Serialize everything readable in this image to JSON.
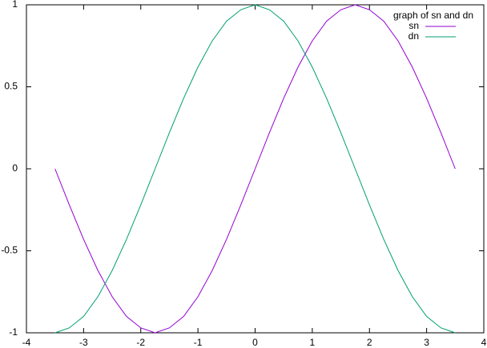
{
  "chart_data": {
    "type": "line",
    "legend_title": "graph of sn and dn",
    "legend_position": "top-right",
    "x": [
      -3.5,
      -3.25,
      -3,
      -2.75,
      -2.5,
      -2.25,
      -2,
      -1.75,
      -1.5,
      -1.25,
      -1,
      -0.75,
      -0.5,
      -0.25,
      0,
      0.25,
      0.5,
      0.75,
      1,
      1.25,
      1.5,
      1.75,
      2,
      2.25,
      2.5,
      2.75,
      3,
      3.25,
      3.5
    ],
    "series": [
      {
        "name": "sn",
        "color": "#9400d3",
        "values": [
          0,
          -0.22,
          -0.43,
          -0.62,
          -0.78,
          -0.9,
          -0.97,
          -1,
          -0.97,
          -0.9,
          -0.78,
          -0.62,
          -0.43,
          -0.22,
          0,
          0.22,
          0.43,
          0.62,
          0.78,
          0.9,
          0.97,
          1,
          0.97,
          0.9,
          0.78,
          0.62,
          0.43,
          0.22,
          0
        ]
      },
      {
        "name": "dn",
        "color": "#009e73",
        "values": [
          -1,
          -0.97,
          -0.9,
          -0.78,
          -0.62,
          -0.43,
          -0.22,
          0,
          0.22,
          0.43,
          0.62,
          0.78,
          0.9,
          0.97,
          1,
          0.97,
          0.9,
          0.78,
          0.62,
          0.43,
          0.22,
          0,
          -0.22,
          -0.43,
          -0.62,
          -0.78,
          -0.9,
          -0.97,
          -1
        ]
      }
    ],
    "xlim": [
      -4,
      4
    ],
    "xticks": [
      -4,
      -3,
      -2,
      -1,
      0,
      1,
      2,
      3,
      4
    ],
    "ylim": [
      -1,
      1
    ],
    "yticks": [
      -1,
      -0.5,
      0,
      0.5,
      1
    ]
  }
}
